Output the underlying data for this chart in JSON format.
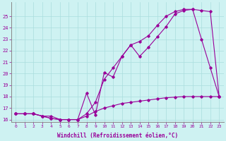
{
  "xlabel": "Windchill (Refroidissement éolien,°C)",
  "bg_color": "#cef2f2",
  "line_color": "#990099",
  "grid_color": "#aadddd",
  "xlim": [
    -0.5,
    23.5
  ],
  "ylim": [
    15.8,
    26.2
  ],
  "xticks": [
    0,
    1,
    2,
    3,
    4,
    5,
    6,
    7,
    8,
    9,
    10,
    11,
    12,
    13,
    14,
    15,
    16,
    17,
    18,
    19,
    20,
    21,
    22,
    23
  ],
  "yticks": [
    16,
    17,
    18,
    19,
    20,
    21,
    22,
    23,
    24,
    25
  ],
  "line1_x": [
    0,
    1,
    2,
    3,
    4,
    5,
    6,
    7,
    8,
    9,
    10,
    11,
    12,
    13,
    14,
    15,
    16,
    17,
    18,
    19,
    20,
    21,
    22,
    23
  ],
  "line1_y": [
    16.5,
    16.5,
    16.5,
    16.3,
    16.1,
    16.0,
    16.0,
    16.0,
    18.3,
    16.4,
    20.1,
    19.7,
    21.5,
    22.5,
    21.5,
    22.3,
    23.2,
    24.1,
    25.2,
    25.5,
    25.6,
    23.0,
    20.5,
    18.0
  ],
  "line2_x": [
    0,
    1,
    2,
    3,
    4,
    5,
    6,
    7,
    8,
    9,
    10,
    11,
    12,
    13,
    14,
    15,
    16,
    17,
    18,
    19,
    20,
    21,
    22,
    23
  ],
  "line2_y": [
    16.5,
    16.5,
    16.5,
    16.3,
    16.3,
    16.0,
    16.0,
    16.0,
    16.5,
    17.5,
    19.5,
    20.5,
    21.5,
    22.5,
    22.8,
    23.3,
    24.2,
    25.0,
    25.4,
    25.6,
    25.6,
    25.5,
    25.4,
    18.0
  ],
  "line3_x": [
    0,
    1,
    2,
    3,
    4,
    5,
    6,
    7,
    8,
    9,
    10,
    11,
    12,
    13,
    14,
    15,
    16,
    17,
    18,
    19,
    20,
    21,
    22,
    23
  ],
  "line3_y": [
    16.5,
    16.5,
    16.5,
    16.3,
    16.1,
    16.0,
    16.0,
    16.0,
    16.3,
    16.7,
    17.0,
    17.2,
    17.4,
    17.5,
    17.6,
    17.7,
    17.8,
    17.9,
    17.95,
    18.0,
    18.0,
    18.0,
    18.0,
    18.0
  ]
}
